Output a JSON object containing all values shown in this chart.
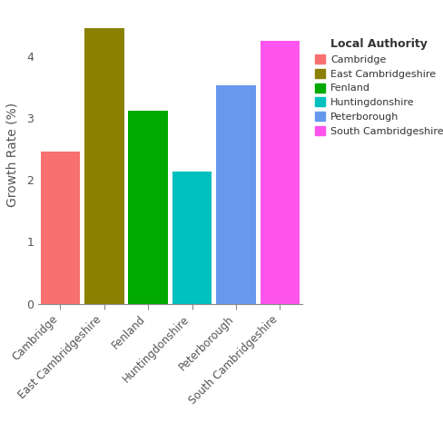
{
  "categories": [
    "Cambridge",
    "East Cambridgeshire",
    "Fenland",
    "Huntingdonshire",
    "Peterborough",
    "South Cambridgeshire"
  ],
  "values": [
    2.45,
    4.45,
    3.12,
    2.13,
    3.52,
    4.25
  ],
  "bar_colors": [
    "#F87070",
    "#8B8000",
    "#00AA00",
    "#00BFBF",
    "#6699EE",
    "#FF55EE"
  ],
  "ylabel": "Growth Rate (%)",
  "ylim": [
    0,
    4.8
  ],
  "yticks": [
    0,
    1,
    2,
    3,
    4
  ],
  "legend_title": "Local Authority",
  "legend_colors": [
    "#F87070",
    "#8B8000",
    "#00AA00",
    "#00BFBF",
    "#6699EE",
    "#FF55EE"
  ],
  "legend_labels": [
    "Cambridge",
    "East Cambridgeshire",
    "Fenland",
    "Huntingdonshire",
    "Peterborough",
    "South Cambridgeshire"
  ],
  "background_color": "#FFFFFF"
}
